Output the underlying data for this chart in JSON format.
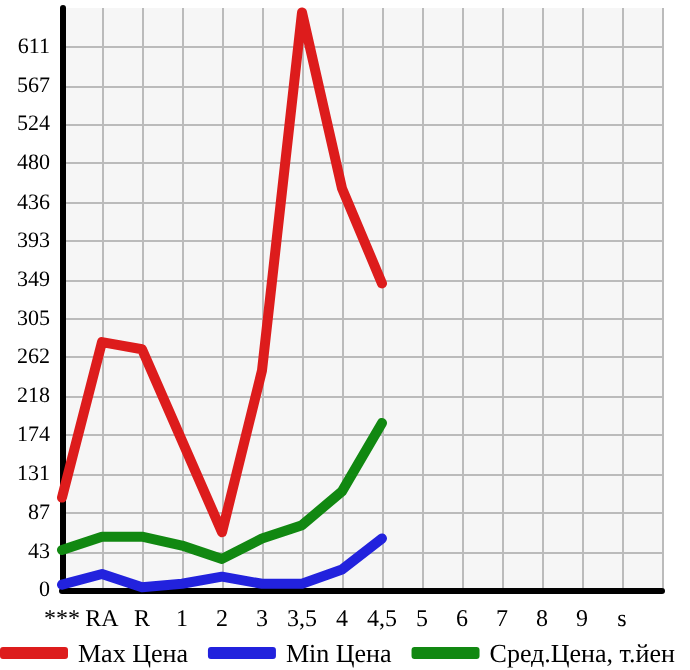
{
  "chart_data": {
    "type": "line",
    "categories": [
      "***",
      "RA",
      "R",
      "1",
      "2",
      "3",
      "3,5",
      "4",
      "4,5",
      "5",
      "6",
      "7",
      "8",
      "9",
      "s",
      null
    ],
    "series": [
      {
        "name": "Max Цена",
        "color": "#dd1c1c",
        "values": [
          104,
          279,
          271,
          168,
          65,
          247,
          650,
          452,
          345,
          null,
          null,
          null,
          null,
          null,
          null,
          null
        ]
      },
      {
        "name": "Min Цена",
        "color": "#2222dd",
        "values": [
          6,
          18,
          3,
          7,
          15,
          7,
          7,
          23,
          58,
          null,
          null,
          null,
          null,
          null,
          null,
          null
        ]
      },
      {
        "name": "Сред.Цена, т.йен",
        "color": "#118811",
        "values": [
          45,
          60,
          60,
          50,
          35,
          58,
          73,
          111,
          188,
          null,
          null,
          null,
          null,
          null,
          null,
          null
        ]
      }
    ],
    "ylim": [
      0,
      655
    ],
    "yticks": [
      0,
      43,
      87,
      131,
      174,
      218,
      262,
      305,
      349,
      393,
      436,
      480,
      524,
      567,
      611
    ],
    "grid": true,
    "legend": "bottom",
    "marker": "none",
    "line_style": "solid"
  }
}
